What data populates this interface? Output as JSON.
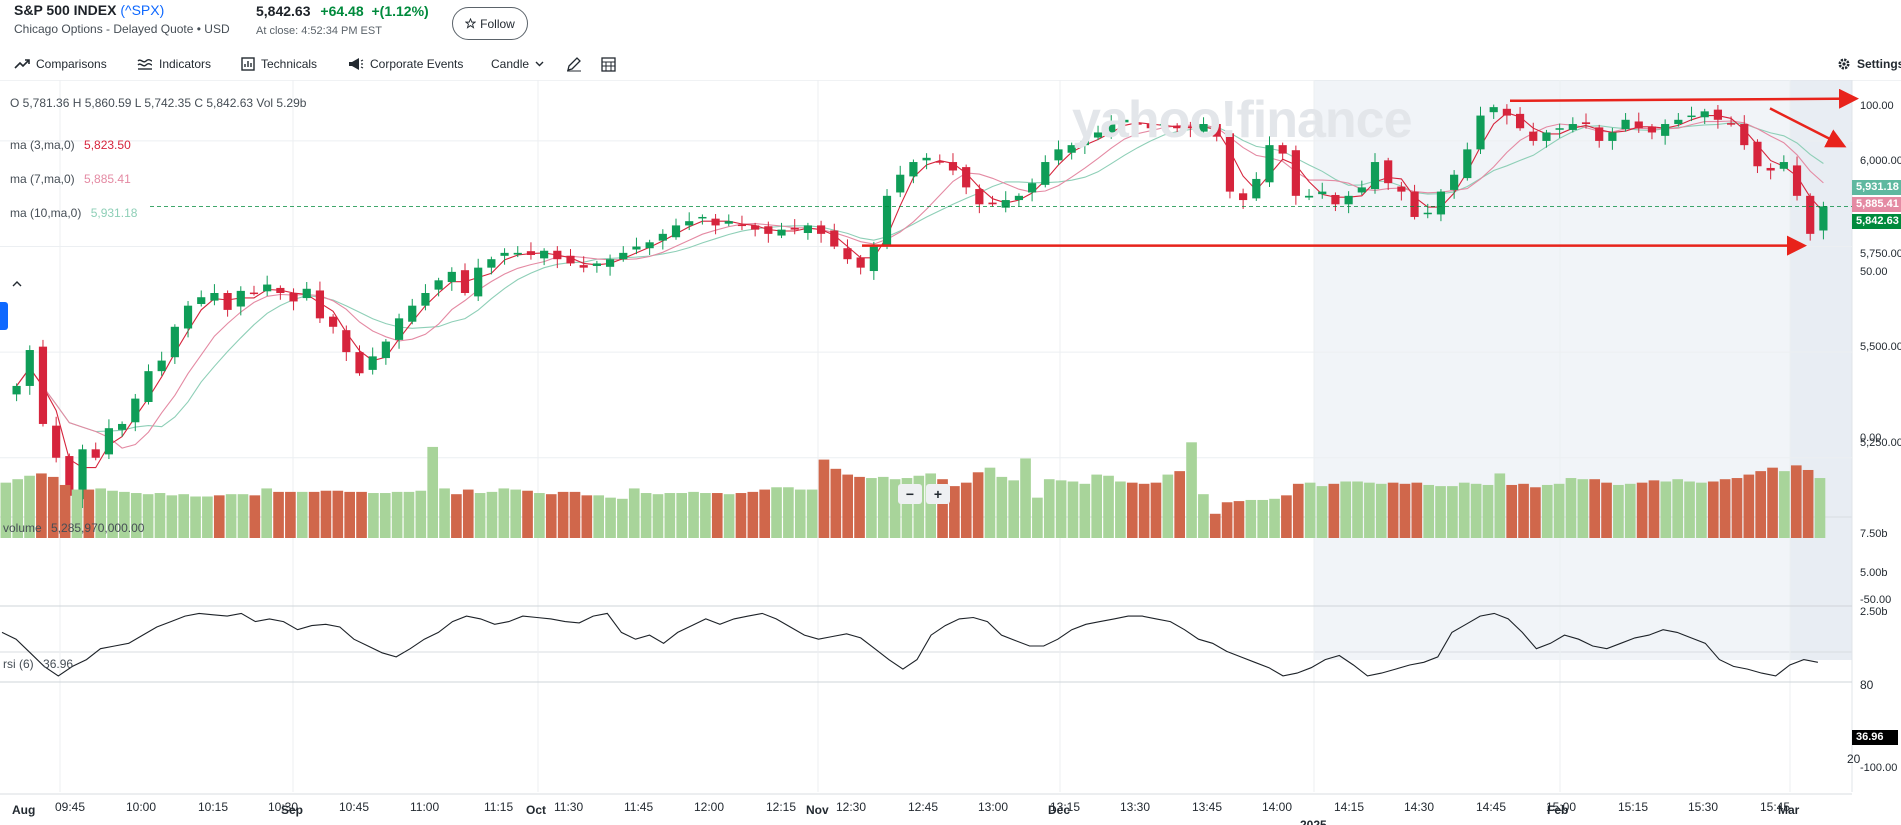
{
  "header": {
    "title": "S&P 500 INDEX",
    "symbol": "(^SPX)",
    "exchange": "Chicago Options - Delayed Quote • USD",
    "price": "5,842.63",
    "change": "+64.48",
    "change_pct": "+(1.12%)",
    "close_time": "At close: 4:52:34 PM EST",
    "follow_label": "Follow",
    "colors": {
      "positive": "#008a3c",
      "link": "#0f69ff"
    }
  },
  "toolbar": {
    "comparisons": "Comparisons",
    "indicators": "Indicators",
    "technicals": "Technicals",
    "corporate_events": "Corporate Events",
    "candle": "Candle",
    "settings": "Settings"
  },
  "legend": {
    "ohlc_label": "O 5,781.36  H 5,860.59  L 5,742.35  C 5,842.63  Vol 5.29b",
    "ma3_label": "ma (3,ma,0)",
    "ma3_value": "5,823.50",
    "ma3_color": "#d6243c",
    "ma7_label": "ma (7,ma,0)",
    "ma7_value": "5,885.41",
    "ma7_color": "#e48aa3",
    "ma10_label": "ma (10,ma,0)",
    "ma10_value": "5,931.18",
    "ma10_color": "#8ecfb7",
    "volume_label": "volume",
    "volume_value": "5,285,970,000.00",
    "rsi_label": "rsi (6)",
    "rsi_value": "36.96"
  },
  "watermark": "yahoo!finance",
  "zoom": {
    "minus": "−",
    "plus": "+"
  },
  "badges": {
    "ma10": "5,931.18",
    "ma7": "5,885.41",
    "close": "5,842.63",
    "rsi": "36.96"
  },
  "y_ticks": {
    "price": [
      "100.00",
      "6,000.00",
      "5,750.00",
      "50.00",
      "5,500.00",
      "0.00",
      "5,250.00"
    ],
    "volume": [
      "7.50b",
      "5.00b",
      "-50.00",
      "2.50b"
    ],
    "rsi": [
      "80",
      "20",
      "-100.00"
    ]
  },
  "x_ticks": [
    "Aug",
    "09:45",
    "10:00",
    "10:15",
    "10:30",
    "Sep",
    "10:45",
    "11:00",
    "11:15",
    "Oct",
    "11:30",
    "11:45",
    "12:00",
    "12:15",
    "Nov",
    "12:30",
    "12:45",
    "13:00",
    "13:15",
    "Dec",
    "13:30",
    "13:45",
    "14:00",
    "14:15",
    "14:30",
    "14:45",
    "15:00",
    "Feb",
    "15:15",
    "15:30",
    "15:45",
    "Mar",
    "2025"
  ],
  "chart_data": {
    "type": "candlestick",
    "y_range": [
      5150,
      6130
    ],
    "closes": [
      5420,
      5505,
      5330,
      5250,
      5160,
      5270,
      5250,
      5320,
      5330,
      5390,
      5455,
      5480,
      5560,
      5610,
      5630,
      5640,
      5600,
      5645,
      5640,
      5660,
      5640,
      5620,
      5650,
      5580,
      5560,
      5500,
      5450,
      5490,
      5525,
      5580,
      5610,
      5640,
      5670,
      5690,
      5640,
      5700,
      5720,
      5735,
      5735,
      5730,
      5740,
      5720,
      5710,
      5700,
      5710,
      5720,
      5735,
      5750,
      5760,
      5780,
      5800,
      5810,
      5820,
      5800,
      5810,
      5800,
      5790,
      5780,
      5790,
      5790,
      5800,
      5780,
      5750,
      5720,
      5700,
      5750,
      5870,
      5920,
      5950,
      5960,
      5950,
      5930,
      5890,
      5850,
      5850,
      5860,
      5870,
      5900,
      5950,
      5980,
      5990,
      6000,
      6020,
      6040,
      6050,
      6040,
      6030,
      6040,
      6030,
      6030,
      6040,
      6010,
      5880,
      5860,
      5910,
      5990,
      5970,
      5870,
      5870,
      5880,
      5850,
      5870,
      5890,
      5950,
      5900,
      5880,
      5820,
      5830,
      5880,
      5920,
      5980,
      6060,
      6080,
      6060,
      6030,
      6000,
      6020,
      6030,
      6040,
      6040,
      6000,
      6020,
      6050,
      6030,
      6020,
      6040,
      6050,
      6060,
      6070,
      6050,
      6040,
      5990,
      5940,
      5930,
      5950,
      5870,
      5780,
      5845
    ],
    "volumes_b": [
      4.8,
      5.1,
      5.4,
      5.6,
      5.3,
      4.6,
      4.2,
      4.2,
      4.3,
      4.1,
      4.0,
      3.9,
      3.8,
      3.9,
      3.7,
      3.8,
      3.6,
      3.6,
      3.7,
      3.8,
      3.8,
      3.7,
      4.3,
      4.0,
      4.0,
      4.0,
      4.0,
      4.1,
      4.1,
      4.0,
      4.0,
      3.9,
      3.9,
      4.0,
      4.0,
      4.1,
      7.9,
      4.3,
      3.8,
      4.2,
      3.9,
      4.0,
      4.3,
      4.2,
      4.1,
      3.9,
      3.8,
      4.0,
      4.0,
      3.7,
      3.7,
      3.5,
      3.4,
      4.3,
      3.9,
      3.8,
      3.9,
      3.9,
      4.0,
      3.9,
      3.9,
      3.8,
      3.9,
      4.0,
      4.2,
      4.4,
      4.4,
      4.2,
      4.2,
      6.8,
      6.0,
      5.5,
      5.3,
      5.2,
      5.3,
      5.1,
      5.2,
      5.4,
      5.6,
      5.1,
      4.5,
      4.8,
      5.7,
      6.1,
      5.3,
      5.0,
      6.9,
      3.5,
      5.1,
      5.0,
      4.9,
      4.7,
      5.5,
      5.4,
      4.9,
      4.8,
      4.7,
      4.8,
      5.5,
      5.8,
      8.3,
      3.8,
      2.1,
      3.1,
      3.2,
      3.3,
      3.3,
      3.4,
      3.7,
      4.7,
      4.8,
      4.5,
      4.7,
      4.9,
      4.9,
      4.8,
      4.7,
      4.8,
      4.7,
      4.8,
      4.6,
      4.5,
      4.5,
      4.8,
      4.7,
      4.6,
      5.6,
      4.6,
      4.7,
      4.4,
      4.6,
      4.7,
      5.2,
      5.1,
      5.1,
      4.8,
      4.6,
      4.7,
      4.8,
      5.0,
      4.9,
      5.1,
      4.9,
      4.8,
      4.9,
      5.1,
      5.2,
      5.5,
      5.8,
      6.1,
      5.8,
      6.3,
      5.9,
      5.2
    ],
    "rsi": [
      60,
      55,
      45,
      35,
      28,
      35,
      40,
      48,
      50,
      52,
      58,
      64,
      68,
      72,
      74,
      73,
      72,
      74,
      68,
      70,
      68,
      62,
      65,
      66,
      64,
      55,
      50,
      45,
      42,
      48,
      55,
      60,
      68,
      72,
      70,
      66,
      68,
      72,
      71,
      70,
      68,
      67,
      72,
      74,
      60,
      55,
      58,
      52,
      60,
      65,
      70,
      66,
      70,
      72,
      74,
      70,
      64,
      58,
      55,
      57,
      59,
      56,
      48,
      40,
      33,
      40,
      58,
      65,
      70,
      71,
      68,
      58,
      54,
      50,
      50,
      55,
      62,
      66,
      68,
      70,
      72,
      72,
      70,
      68,
      62,
      55,
      52,
      46,
      42,
      38,
      34,
      28,
      30,
      34,
      40,
      43,
      36,
      28,
      30,
      33,
      36,
      38,
      42,
      60,
      66,
      72,
      74,
      70,
      60,
      48,
      52,
      58,
      55,
      50,
      48,
      52,
      56,
      58,
      62,
      60,
      56,
      52,
      40,
      35,
      33,
      30,
      28,
      36,
      40,
      38
    ],
    "rsi_range": [
      -100,
      100
    ],
    "volume_range_b": [
      0,
      8.5
    ],
    "annotations": [
      "horizontal red arrow near 6,095",
      "horizontal red arrow near 5,750",
      "diagonal red arrow near 6,060"
    ]
  }
}
